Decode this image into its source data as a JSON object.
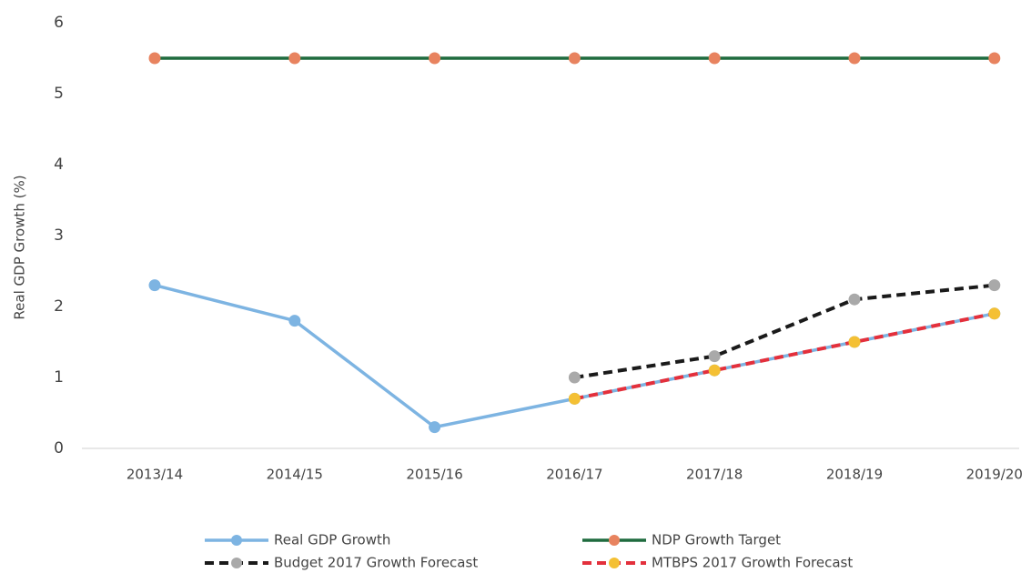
{
  "chart_data": {
    "type": "line",
    "y_label": "Real GDP Growth (%)",
    "categories": [
      "2013/14",
      "2014/15",
      "2015/16",
      "2016/17",
      "2017/18",
      "2018/19",
      "2019/20"
    ],
    "ylim": [
      0,
      6
    ],
    "yticks": [
      0,
      1,
      2,
      3,
      4,
      5,
      6
    ],
    "grid": false,
    "legend": "bottom",
    "series": [
      {
        "name": "Real GDP Growth",
        "color": "#7db4e2",
        "marker_color": "#7db4e2",
        "dashed": false,
        "values": [
          2.3,
          1.8,
          0.3,
          0.7,
          1.1,
          1.5,
          1.9
        ]
      },
      {
        "name": "NDP Growth Target",
        "color": "#1f6b3e",
        "marker_color": "#e8835f",
        "dashed": false,
        "values": [
          5.5,
          5.5,
          5.5,
          5.5,
          5.5,
          5.5,
          5.5
        ]
      },
      {
        "name": "Budget 2017 Growth Forecast",
        "color": "#1a1a1a",
        "marker_color": "#a9a9a9",
        "dashed": true,
        "values": [
          null,
          null,
          null,
          1.0,
          1.3,
          2.1,
          2.3
        ]
      },
      {
        "name": "MTBPS 2017 Growth Forecast",
        "color": "#e3303c",
        "marker_color": "#f4c034",
        "dashed": true,
        "values": [
          null,
          null,
          null,
          0.7,
          1.1,
          1.5,
          1.9
        ]
      }
    ]
  }
}
